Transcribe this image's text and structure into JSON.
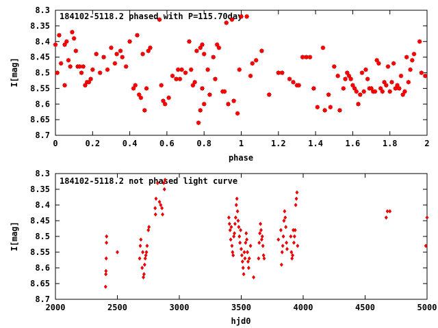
{
  "chart_data": [
    {
      "type": "scatter",
      "title": "184102-5118.2 phased with P=115.70day",
      "xlabel": "phase",
      "ylabel": "I[mag]",
      "xlim": [
        0,
        2
      ],
      "ylim": [
        8.7,
        8.3
      ],
      "y_inverted": true,
      "x_ticks": [
        "0",
        "0.2",
        "0.4",
        "0.6",
        "0.8",
        "1",
        "1.2",
        "1.4",
        "1.6",
        "1.8",
        "2"
      ],
      "y_ticks": [
        "8.3",
        "8.35",
        "8.4",
        "8.45",
        "8.5",
        "8.55",
        "8.6",
        "8.65",
        "8.7"
      ],
      "marker": "star",
      "color": "#ff0000",
      "points": [
        [
          0.0,
          8.41
        ],
        [
          0.01,
          8.5
        ],
        [
          0.02,
          8.38
        ],
        [
          0.03,
          8.47
        ],
        [
          0.05,
          8.41
        ],
        [
          0.05,
          8.54
        ],
        [
          0.06,
          8.4
        ],
        [
          0.07,
          8.46
        ],
        [
          0.08,
          8.48
        ],
        [
          0.09,
          8.37
        ],
        [
          0.1,
          8.39
        ],
        [
          0.11,
          8.43
        ],
        [
          0.12,
          8.48
        ],
        [
          0.13,
          8.48
        ],
        [
          0.14,
          8.5
        ],
        [
          0.15,
          8.48
        ],
        [
          0.16,
          8.54
        ],
        [
          0.17,
          8.53
        ],
        [
          0.18,
          8.53
        ],
        [
          0.19,
          8.52
        ],
        [
          0.2,
          8.49
        ],
        [
          0.22,
          8.44
        ],
        [
          0.24,
          8.5
        ],
        [
          0.26,
          8.45
        ],
        [
          0.28,
          8.49
        ],
        [
          0.3,
          8.42
        ],
        [
          0.32,
          8.47
        ],
        [
          0.33,
          8.44
        ],
        [
          0.35,
          8.43
        ],
        [
          0.36,
          8.45
        ],
        [
          0.38,
          8.48
        ],
        [
          0.4,
          8.4
        ],
        [
          0.42,
          8.55
        ],
        [
          0.43,
          8.54
        ],
        [
          0.44,
          8.38
        ],
        [
          0.45,
          8.57
        ],
        [
          0.46,
          8.58
        ],
        [
          0.47,
          8.44
        ],
        [
          0.48,
          8.62
        ],
        [
          0.49,
          8.55
        ],
        [
          0.5,
          8.43
        ],
        [
          0.51,
          8.42
        ],
        [
          0.56,
          8.33
        ],
        [
          0.57,
          8.54
        ],
        [
          0.58,
          8.59
        ],
        [
          0.59,
          8.6
        ],
        [
          0.61,
          8.58
        ],
        [
          0.63,
          8.51
        ],
        [
          0.65,
          8.52
        ],
        [
          0.66,
          8.49
        ],
        [
          0.67,
          8.52
        ],
        [
          0.68,
          8.49
        ],
        [
          0.7,
          8.5
        ],
        [
          0.72,
          8.4
        ],
        [
          0.73,
          8.49
        ],
        [
          0.74,
          8.54
        ],
        [
          0.75,
          8.53
        ],
        [
          0.76,
          8.43
        ],
        [
          0.77,
          8.66
        ],
        [
          0.78,
          8.62
        ],
        [
          0.78,
          8.42
        ],
        [
          0.79,
          8.41
        ],
        [
          0.79,
          8.55
        ],
        [
          0.8,
          8.6
        ],
        [
          0.8,
          8.44
        ],
        [
          0.82,
          8.49
        ],
        [
          0.83,
          8.57
        ],
        [
          0.85,
          8.45
        ],
        [
          0.86,
          8.52
        ],
        [
          0.87,
          8.41
        ],
        [
          0.88,
          8.42
        ],
        [
          0.9,
          8.56
        ],
        [
          0.91,
          8.56
        ],
        [
          0.92,
          8.34
        ],
        [
          0.93,
          8.6
        ],
        [
          0.95,
          8.33
        ],
        [
          0.96,
          8.59
        ],
        [
          0.98,
          8.63
        ],
        [
          0.99,
          8.49
        ],
        [
          1.0,
          8.32
        ],
        [
          1.03,
          8.32
        ],
        [
          1.05,
          8.51
        ],
        [
          1.06,
          8.47
        ],
        [
          1.08,
          8.46
        ],
        [
          1.11,
          8.43
        ],
        [
          1.15,
          8.57
        ],
        [
          1.2,
          8.5
        ],
        [
          1.22,
          8.5
        ],
        [
          1.26,
          8.52
        ],
        [
          1.28,
          8.53
        ],
        [
          1.3,
          8.54
        ],
        [
          1.31,
          8.54
        ],
        [
          1.33,
          8.45
        ],
        [
          1.35,
          8.45
        ],
        [
          1.37,
          8.45
        ],
        [
          1.39,
          8.55
        ],
        [
          1.41,
          8.61
        ],
        [
          1.44,
          8.42
        ],
        [
          1.45,
          8.62
        ],
        [
          1.47,
          8.57
        ],
        [
          1.48,
          8.61
        ],
        [
          1.5,
          8.48
        ],
        [
          1.52,
          8.51
        ],
        [
          1.53,
          8.62
        ],
        [
          1.55,
          8.55
        ],
        [
          1.56,
          8.52
        ],
        [
          1.57,
          8.5
        ],
        [
          1.58,
          8.51
        ],
        [
          1.59,
          8.52
        ],
        [
          1.6,
          8.54
        ],
        [
          1.61,
          8.55
        ],
        [
          1.62,
          8.56
        ],
        [
          1.63,
          8.6
        ],
        [
          1.64,
          8.57
        ],
        [
          1.65,
          8.5
        ],
        [
          1.66,
          8.56
        ],
        [
          1.67,
          8.49
        ],
        [
          1.68,
          8.52
        ],
        [
          1.69,
          8.55
        ],
        [
          1.7,
          8.55
        ],
        [
          1.71,
          8.56
        ],
        [
          1.72,
          8.56
        ],
        [
          1.73,
          8.46
        ],
        [
          1.74,
          8.47
        ],
        [
          1.75,
          8.55
        ],
        [
          1.76,
          8.56
        ],
        [
          1.77,
          8.53
        ],
        [
          1.78,
          8.54
        ],
        [
          1.79,
          8.48
        ],
        [
          1.8,
          8.56
        ],
        [
          1.81,
          8.53
        ],
        [
          1.82,
          8.47
        ],
        [
          1.83,
          8.55
        ],
        [
          1.84,
          8.54
        ],
        [
          1.85,
          8.55
        ],
        [
          1.86,
          8.51
        ],
        [
          1.87,
          8.57
        ],
        [
          1.88,
          8.56
        ],
        [
          1.89,
          8.45
        ],
        [
          1.9,
          8.53
        ],
        [
          1.91,
          8.49
        ],
        [
          1.92,
          8.46
        ],
        [
          1.93,
          8.44
        ],
        [
          1.96,
          8.4
        ],
        [
          1.97,
          8.5
        ],
        [
          1.99,
          8.51
        ]
      ]
    },
    {
      "type": "scatter",
      "title": "184102-5118.2 not phased light curve",
      "xlabel": "hjd0",
      "ylabel": "I[mag]",
      "xlim": [
        2000,
        5000
      ],
      "ylim": [
        8.7,
        8.3
      ],
      "y_inverted": true,
      "x_ticks": [
        "2000",
        "2500",
        "3000",
        "3500",
        "4000",
        "4500",
        "5000"
      ],
      "y_ticks": [
        "8.3",
        "8.35",
        "8.4",
        "8.45",
        "8.5",
        "8.55",
        "8.6",
        "8.65",
        "8.7"
      ],
      "marker": "diamond",
      "color": "#ff0000",
      "points": [
        [
          2405,
          8.66
        ],
        [
          2407,
          8.62
        ],
        [
          2408,
          8.61
        ],
        [
          2410,
          8.57
        ],
        [
          2412,
          8.52
        ],
        [
          2413,
          8.5
        ],
        [
          2500,
          8.55
        ],
        [
          2680,
          8.57
        ],
        [
          2685,
          8.53
        ],
        [
          2690,
          8.51
        ],
        [
          2700,
          8.6
        ],
        [
          2705,
          8.55
        ],
        [
          2710,
          8.63
        ],
        [
          2715,
          8.62
        ],
        [
          2720,
          8.59
        ],
        [
          2725,
          8.57
        ],
        [
          2730,
          8.56
        ],
        [
          2735,
          8.55
        ],
        [
          2740,
          8.53
        ],
        [
          2750,
          8.48
        ],
        [
          2755,
          8.47
        ],
        [
          2805,
          8.41
        ],
        [
          2808,
          8.43
        ],
        [
          2812,
          8.38
        ],
        [
          2825,
          8.33
        ],
        [
          2840,
          8.39
        ],
        [
          2850,
          8.4
        ],
        [
          2860,
          8.41
        ],
        [
          2865,
          8.43
        ],
        [
          2875,
          8.33
        ],
        [
          2880,
          8.35
        ],
        [
          2885,
          8.32
        ],
        [
          3400,
          8.44
        ],
        [
          3405,
          8.46
        ],
        [
          3410,
          8.48
        ],
        [
          3415,
          8.51
        ],
        [
          3420,
          8.47
        ],
        [
          3425,
          8.53
        ],
        [
          3430,
          8.55
        ],
        [
          3435,
          8.56
        ],
        [
          3440,
          8.5
        ],
        [
          3445,
          8.49
        ],
        [
          3450,
          8.46
        ],
        [
          3455,
          8.44
        ],
        [
          3460,
          8.4
        ],
        [
          3465,
          8.38
        ],
        [
          3470,
          8.42
        ],
        [
          3475,
          8.45
        ],
        [
          3480,
          8.47
        ],
        [
          3485,
          8.5
        ],
        [
          3490,
          8.52
        ],
        [
          3495,
          8.48
        ],
        [
          3500,
          8.54
        ],
        [
          3505,
          8.56
        ],
        [
          3510,
          8.58
        ],
        [
          3515,
          8.6
        ],
        [
          3520,
          8.62
        ],
        [
          3525,
          8.55
        ],
        [
          3530,
          8.57
        ],
        [
          3535,
          8.52
        ],
        [
          3540,
          8.49
        ],
        [
          3545,
          8.51
        ],
        [
          3550,
          8.55
        ],
        [
          3555,
          8.58
        ],
        [
          3560,
          8.6
        ],
        [
          3565,
          8.57
        ],
        [
          3575,
          8.53
        ],
        [
          3600,
          8.63
        ],
        [
          3640,
          8.57
        ],
        [
          3645,
          8.52
        ],
        [
          3650,
          8.49
        ],
        [
          3655,
          8.46
        ],
        [
          3660,
          8.48
        ],
        [
          3665,
          8.51
        ],
        [
          3670,
          8.5
        ],
        [
          3675,
          8.53
        ],
        [
          3680,
          8.56
        ],
        [
          3685,
          8.57
        ],
        [
          3800,
          8.51
        ],
        [
          3820,
          8.48
        ],
        [
          3825,
          8.59
        ],
        [
          3830,
          8.55
        ],
        [
          3835,
          8.53
        ],
        [
          3840,
          8.5
        ],
        [
          3845,
          8.45
        ],
        [
          3850,
          8.42
        ],
        [
          3855,
          8.44
        ],
        [
          3860,
          8.47
        ],
        [
          3865,
          8.52
        ],
        [
          3870,
          8.54
        ],
        [
          3900,
          8.5
        ],
        [
          3905,
          8.55
        ],
        [
          3910,
          8.57
        ],
        [
          3915,
          8.56
        ],
        [
          3920,
          8.48
        ],
        [
          3925,
          8.52
        ],
        [
          3930,
          8.5
        ],
        [
          3935,
          8.48
        ],
        [
          3940,
          8.4
        ],
        [
          3945,
          8.38
        ],
        [
          3950,
          8.36
        ],
        [
          3955,
          8.53
        ],
        [
          4670,
          8.44
        ],
        [
          4680,
          8.42
        ],
        [
          4700,
          8.42
        ],
        [
          4990,
          8.53
        ],
        [
          5000,
          8.44
        ]
      ]
    }
  ]
}
